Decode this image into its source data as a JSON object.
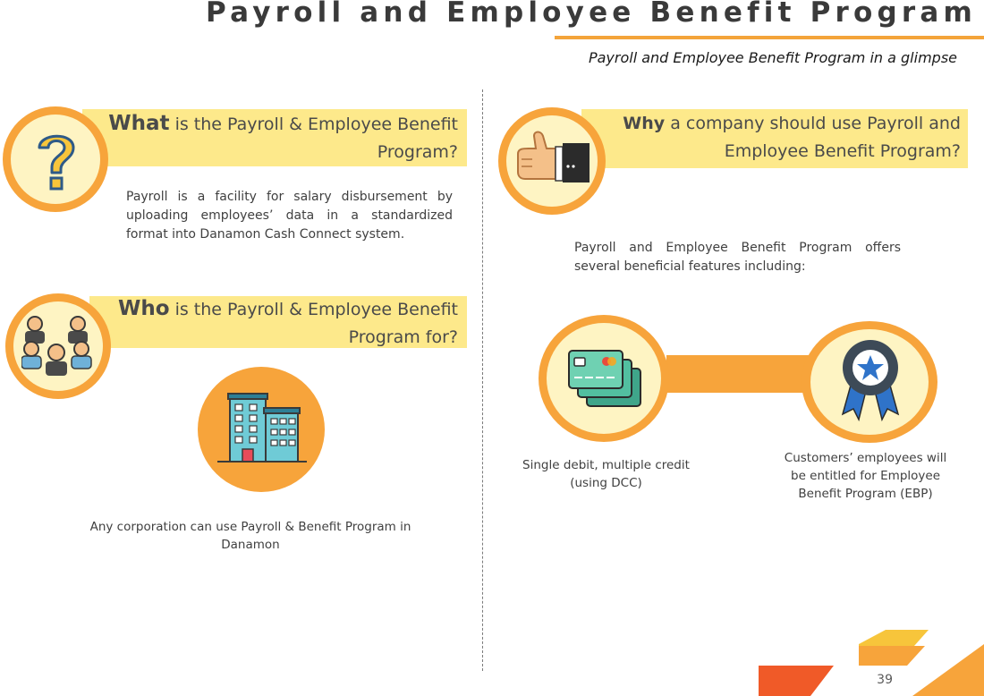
{
  "header": {
    "title": "Payroll and Employee Benefit Program",
    "subtitle": "Payroll and Employee Benefit Program in a glimpse"
  },
  "what": {
    "keyword": "What",
    "line1_rest": " is the Payroll & Employee Benefit",
    "line2": "Program?",
    "body": "Payroll is a facility for salary disbursement by uploading employees’ data in a standardized format into Danamon Cash Connect system."
  },
  "who": {
    "keyword": "Who",
    "line1_rest": " is the Payroll & Employee Benefit",
    "line2": "Program for?",
    "body_line1": "Any corporation can use Payroll & Benefit Program in",
    "body_line2": "Danamon"
  },
  "why": {
    "keyword": "Why",
    "line1_rest": " a company should use Payroll and",
    "line2": "Employee Benefit Program?",
    "body": "Payroll and Employee Benefit Program offers several beneficial features including:"
  },
  "features": {
    "dcc_line1": "Single debit, multiple credit",
    "dcc_line2": "(using DCC)",
    "ebp_line1": "Customers’ employees will",
    "ebp_line2": "be entitled for Employee",
    "ebp_line3": "Benefit Program (EBP)"
  },
  "icons": {
    "question": "question-mark-icon",
    "thumbs": "thumbs-up-icon",
    "people": "people-group-icon",
    "building": "building-icon",
    "cards": "credit-cards-icon",
    "award": "award-ribbon-icon"
  },
  "colors": {
    "accent_orange": "#f7a43b",
    "band_yellow": "#fde98b",
    "circle_cream": "#fef4c3",
    "brand_red_orange": "#f05a28"
  },
  "footer": {
    "page_number": "39"
  }
}
